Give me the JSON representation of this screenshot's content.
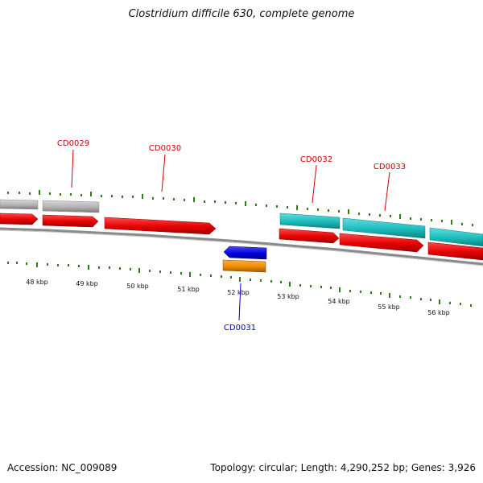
{
  "title": "Clostridium difficile 630, complete genome",
  "footer": {
    "accession": "Accession: NC_009089",
    "summary": "Topology: circular; Length: 4,290,252 bp; Genes: 3,926"
  },
  "colors": {
    "background": "#ffffff",
    "backbone": "#808080",
    "tick": "#2e7d1a",
    "label_red": "#cc0000",
    "label_blue": "#0000cc",
    "cds_red": "#e60000",
    "rna_gray": "#b3b3b3",
    "rna_cyan": "#1cbcbc",
    "cds_blue": "#0000dd",
    "cds_orange": "#f08c00"
  },
  "scale": {
    "unit": "kbp",
    "labels": [
      "48 kbp",
      "49 kbp",
      "50 kbp",
      "51 kbp",
      "52 kbp",
      "53 kbp",
      "54 kbp",
      "55 kbp",
      "56 kbp"
    ]
  },
  "gene_labels": [
    {
      "text": "CD0029",
      "color": "red"
    },
    {
      "text": "CD0030",
      "color": "red"
    },
    {
      "text": "CD0031",
      "color": "blue"
    },
    {
      "text": "CD0032",
      "color": "red"
    },
    {
      "text": "CD0033",
      "color": "red"
    }
  ]
}
